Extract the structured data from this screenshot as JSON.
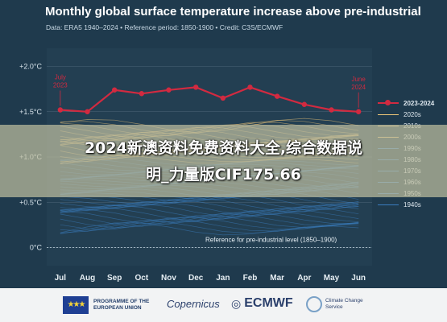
{
  "header": {
    "title": "Monthly global surface temperature increase above pre-industrial",
    "subtitle": "Data: ERA5 1940–2024 • Reference period: 1850-1900 • Credit: C3S/ECMWF"
  },
  "chart_data": {
    "type": "line",
    "xlabel": "",
    "ylabel": "",
    "categories": [
      "Jul",
      "Aug",
      "Sep",
      "Oct",
      "Nov",
      "Dec",
      "Jan",
      "Feb",
      "Mar",
      "Apr",
      "May",
      "Jun"
    ],
    "y_ticks": [
      "+2.0°C",
      "+1.5°C",
      "+1.0°C",
      "+0.5°C",
      "0°C"
    ],
    "ylim": [
      -0.2,
      2.2
    ],
    "grid": true,
    "legend_position": "right",
    "series": [
      {
        "name": "2023-2024",
        "values": [
          1.52,
          1.5,
          1.74,
          1.7,
          1.74,
          1.77,
          1.65,
          1.77,
          1.67,
          1.58,
          1.52,
          1.5
        ]
      }
    ],
    "annotations": [
      {
        "text": "July 2023",
        "x": "Jul",
        "y": 1.52
      },
      {
        "text": "June 2024",
        "x": "Jun",
        "y": 1.5
      }
    ],
    "reference_line": {
      "y": 0,
      "label": "Reference for pre-industrial level (1850–1900)"
    },
    "decade_legend": [
      "2023-2024",
      "2020s",
      "2010s",
      "2000s",
      "1990s",
      "1980s",
      "1970s",
      "1960s",
      "1950s",
      "1940s"
    ],
    "colors": {
      "highlight": "#d22a40",
      "recent": "#f2c97a",
      "older": "#3b7dc0"
    }
  },
  "overlay": {
    "line1": "2024新澳资料免费资料大全,综合数据说",
    "line2": "明_力量版CIF175.66"
  },
  "footer": {
    "eu_label": "PROGRAMME OF THE EUROPEAN UNION",
    "copernicus": "Copernicus",
    "ecmwf": "ECMWF",
    "c3s_label": "Climate Change Service"
  }
}
